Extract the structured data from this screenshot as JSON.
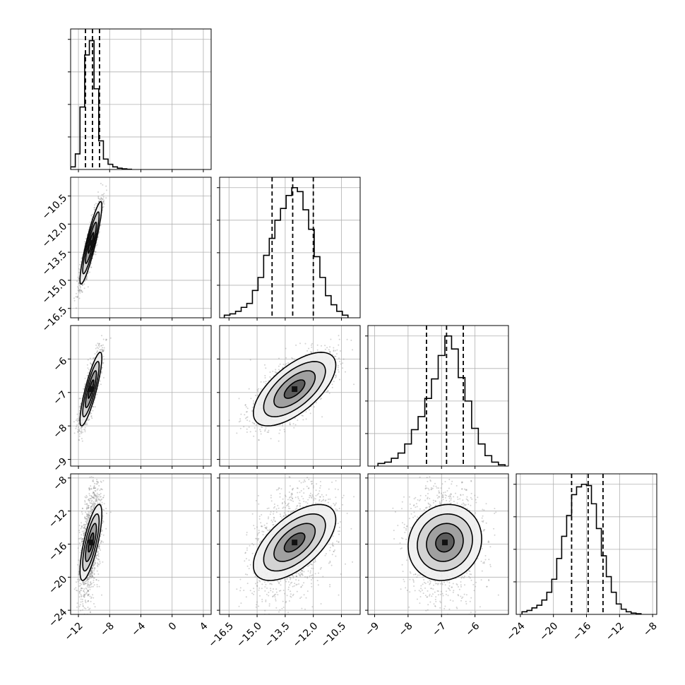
{
  "chart_data": {
    "type": "corner",
    "title": "",
    "parameters": [
      {
        "name": "",
        "range": [
          -13.0,
          5.0
        ],
        "ticks": [
          -12,
          -8,
          -4,
          0,
          4
        ],
        "tick_labels": [
          "−12",
          "−8",
          "−4",
          "0",
          "4"
        ],
        "quantiles": [
          -11.1,
          -10.2,
          -9.3
        ],
        "histogram": {
          "bin_edges": [
            -13.0,
            -12.4,
            -11.8,
            -11.2,
            -10.6,
            -10.0,
            -9.4,
            -8.8,
            -8.2,
            -7.6,
            -7.0,
            -6.4,
            -5.8,
            -5.2
          ],
          "counts": [
            0.02,
            0.12,
            0.48,
            0.88,
            0.99,
            0.62,
            0.22,
            0.08,
            0.04,
            0.02,
            0.01,
            0.005,
            0.002
          ]
        }
      },
      {
        "name": "",
        "range": [
          -17.0,
          -9.5
        ],
        "ticks": [
          -16.5,
          -15.0,
          -13.5,
          -12.0,
          -10.5
        ],
        "tick_labels": [
          "−16.5",
          "−15.0",
          "−13.5",
          "−12.0",
          "−10.5"
        ],
        "quantiles": [
          -14.2,
          -13.1,
          -12.0
        ],
        "histogram": {
          "bin_edges": [
            -16.75,
            -16.45,
            -16.15,
            -15.85,
            -15.55,
            -15.25,
            -14.95,
            -14.65,
            -14.35,
            -14.05,
            -13.75,
            -13.45,
            -13.15,
            -12.85,
            -12.55,
            -12.25,
            -11.95,
            -11.65,
            -11.35,
            -11.05,
            -10.75,
            -10.45,
            -10.15
          ],
          "counts": [
            0.02,
            0.03,
            0.05,
            0.08,
            0.11,
            0.21,
            0.31,
            0.48,
            0.61,
            0.75,
            0.84,
            0.94,
            1.0,
            0.97,
            0.83,
            0.68,
            0.47,
            0.31,
            0.17,
            0.1,
            0.05,
            0.02
          ]
        }
      },
      {
        "name": "",
        "range": [
          -9.2,
          -5.0
        ],
        "ticks": [
          -9,
          -8,
          -7,
          -6
        ],
        "tick_labels": [
          "−9",
          "−8",
          "−7",
          "−6"
        ],
        "quantiles": [
          -7.45,
          -6.85,
          -6.35
        ],
        "histogram": {
          "bin_edges": [
            -8.9,
            -8.7,
            -8.5,
            -8.3,
            -8.1,
            -7.9,
            -7.7,
            -7.5,
            -7.3,
            -7.1,
            -6.9,
            -6.7,
            -6.5,
            -6.3,
            -6.1,
            -5.9,
            -5.7,
            -5.5,
            -5.3,
            -5.1
          ],
          "counts": [
            0.02,
            0.03,
            0.06,
            0.1,
            0.17,
            0.28,
            0.38,
            0.52,
            0.67,
            0.85,
            1.0,
            0.9,
            0.68,
            0.5,
            0.29,
            0.17,
            0.08,
            0.03,
            0.01
          ]
        }
      },
      {
        "name": "",
        "range": [
          -24.5,
          -7.5
        ],
        "ticks": [
          -24,
          -20,
          -16,
          -12,
          -8
        ],
        "tick_labels": [
          "−24",
          "−20",
          "−16",
          "−12",
          "−8"
        ],
        "quantiles": [
          -17.8,
          -15.8,
          -14.0
        ],
        "histogram": {
          "bin_edges": [
            -23.8,
            -23.2,
            -22.6,
            -22.0,
            -21.4,
            -20.8,
            -20.2,
            -19.6,
            -19.0,
            -18.4,
            -17.8,
            -17.2,
            -16.6,
            -16.0,
            -15.4,
            -14.8,
            -14.2,
            -13.6,
            -13.0,
            -12.4,
            -11.8,
            -11.2,
            -10.6,
            -10.0,
            -9.4
          ],
          "counts": [
            0.02,
            0.03,
            0.05,
            0.07,
            0.11,
            0.17,
            0.27,
            0.43,
            0.6,
            0.76,
            0.92,
            0.98,
            1.0,
            0.99,
            0.85,
            0.66,
            0.45,
            0.29,
            0.17,
            0.08,
            0.04,
            0.02,
            0.01,
            0.005
          ]
        }
      }
    ],
    "correlations": [
      [
        1.0,
        0.9,
        0.85,
        0.75
      ],
      [
        0.9,
        1.0,
        0.65,
        0.6
      ],
      [
        0.85,
        0.65,
        1.0,
        0.1
      ],
      [
        0.75,
        0.6,
        0.1,
        1.0
      ]
    ],
    "centers": [
      -10.4,
      -13.0,
      -6.9,
      -15.8
    ],
    "sigmas": [
      0.7,
      1.1,
      0.55,
      2.3
    ],
    "histogram_ticks": [
      0.25,
      0.5,
      0.75,
      1.0
    ],
    "colors": {
      "line": "#000000",
      "points": "#7f7f7f",
      "grid": "#b0b0b0"
    }
  }
}
